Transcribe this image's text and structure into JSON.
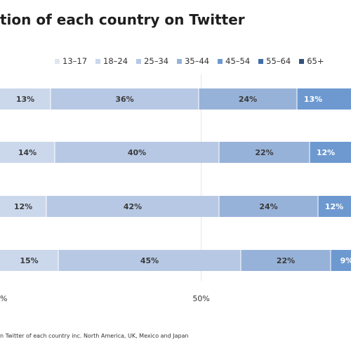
{
  "title": "tion of each country on Twitter",
  "footnote": "n Twitter of each country inc. North America, UK, Mexico and Japan",
  "colors": {
    "13-17": "#dfe6f0",
    "18-24": "#cbd8ec",
    "25-34": "#b6c8e4",
    "35-44": "#97b2d8",
    "45-54": "#6d99d0",
    "55-64": "#3f6ea9",
    "65+": "#35517a"
  },
  "chart_data": {
    "type": "bar",
    "orientation": "horizontal",
    "stacked": true,
    "title": "tion of each country on Twitter",
    "legend": [
      "13–17",
      "18–24",
      "25–34",
      "35–44",
      "45–54",
      "55–64",
      "65+"
    ],
    "legend_position": "top",
    "x_ticks": [
      "%",
      "50%"
    ],
    "xlim": [
      0,
      100
    ],
    "unit": "%",
    "grid": "vertical at 50%",
    "series": [
      {
        "name": "18–24",
        "values": [
          13,
          14,
          12,
          15
        ]
      },
      {
        "name": "25–34",
        "values": [
          36,
          40,
          42,
          45
        ]
      },
      {
        "name": "35–44",
        "values": [
          24,
          22,
          24,
          22
        ]
      },
      {
        "name": "45–54",
        "values": [
          13,
          12,
          12,
          9
        ]
      }
    ],
    "visible_labels": [
      [
        "13%",
        "36%",
        "24%",
        "13%"
      ],
      [
        "14%",
        "40%",
        "22%",
        "12%"
      ],
      [
        "12%",
        "42%",
        "24%",
        "12%"
      ],
      [
        "15%",
        "45%",
        "22%",
        "9%"
      ]
    ]
  }
}
